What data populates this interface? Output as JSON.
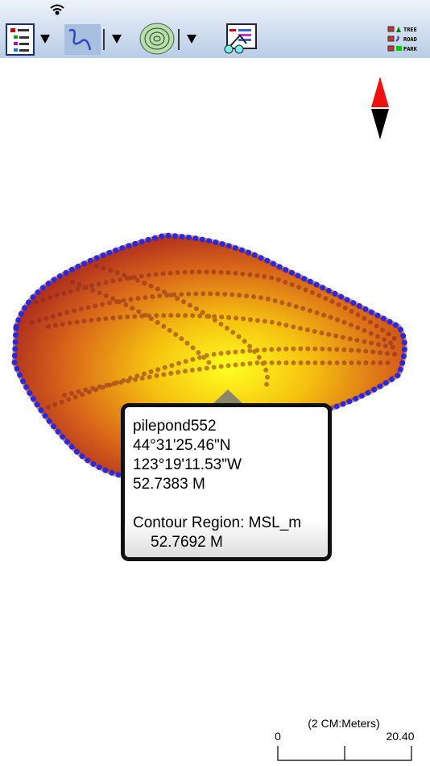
{
  "toolbar": {
    "legend": [
      "TREE",
      "ROAD",
      "PARK"
    ]
  },
  "popup": {
    "name": "pilepond552",
    "latitude": "44°31'25.46\"N",
    "longitude": "123°19'11.53\"W",
    "elevation": "52.7383 M",
    "region": "Contour Region: MSL_m",
    "region_value": "52.7692 M"
  },
  "scale_bar": {
    "unit": "(2 CM:Meters)",
    "start": "0",
    "end": "20.40"
  }
}
